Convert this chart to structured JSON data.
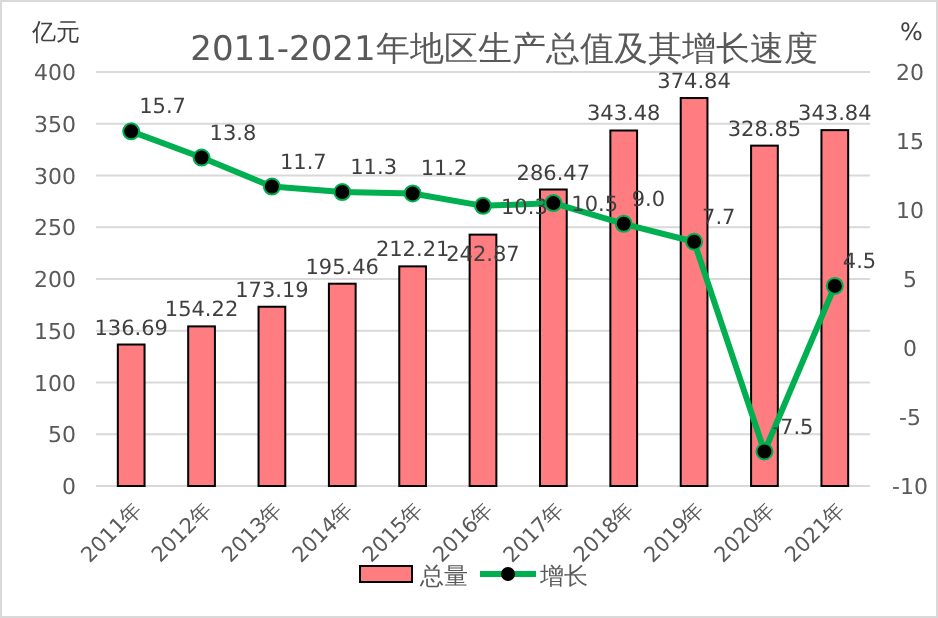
{
  "chart_data": {
    "type": "bar",
    "title": "2011-2021年地区生产总值及其增长速度",
    "ylabel": "亿元",
    "y2label": "%",
    "categories": [
      "2011年",
      "2012年",
      "2013年",
      "2014年",
      "2015年",
      "2016年",
      "2017年",
      "2018年",
      "2019年",
      "2020年",
      "2021年"
    ],
    "series": [
      {
        "name": "总量",
        "color": "#ff7c80",
        "values": [
          136.69,
          154.22,
          173.19,
          195.46,
          212.21,
          242.87,
          286.47,
          343.48,
          374.84,
          328.85,
          343.84
        ],
        "value_labels": [
          "136.69",
          "154.22",
          "173.19",
          "195.46",
          "212.21",
          "242.87",
          "286.47",
          "343.48",
          "374.84",
          "328.85",
          "343.84"
        ]
      },
      {
        "name": "增长",
        "type": "line",
        "axis": "y2",
        "color": "#00b050",
        "marker": "circle",
        "values": [
          15.7,
          13.8,
          11.7,
          11.3,
          11.2,
          10.3,
          10.5,
          9.0,
          7.7,
          -7.5,
          4.5
        ],
        "value_labels": [
          "15.7",
          "13.8",
          "11.7",
          "11.3",
          "11.2",
          "10.3",
          "10.5",
          "9.0",
          "7.7",
          "-7.5",
          "4.5"
        ]
      }
    ],
    "ylim": [
      0,
      400
    ],
    "yticks": [
      0,
      50,
      100,
      150,
      200,
      250,
      300,
      350,
      400
    ],
    "y2lim": [
      -10,
      20
    ],
    "y2ticks": [
      -10,
      -5,
      0,
      5,
      10,
      15,
      20
    ],
    "grid": "y",
    "legend": "bottom"
  }
}
